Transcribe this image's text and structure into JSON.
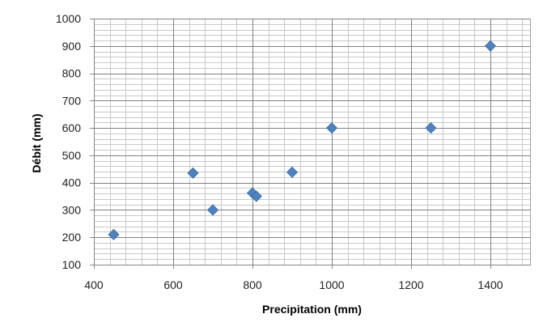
{
  "chart_data": {
    "type": "scatter",
    "title": "",
    "xlabel": "Precipitation (mm)",
    "ylabel": "Débit (mm)",
    "xlim": [
      400,
      1500
    ],
    "ylim": [
      100,
      1000
    ],
    "x_major_step": 200,
    "y_major_step": 100,
    "x_ticks": [
      "400",
      "600",
      "800",
      "1000",
      "1200",
      "1400"
    ],
    "y_ticks": [
      "100",
      "200",
      "300",
      "400",
      "500",
      "600",
      "700",
      "800",
      "900",
      "1000"
    ],
    "grid": true,
    "marker": "diamond",
    "marker_color": "#4f81bd",
    "series": [
      {
        "points": [
          {
            "x": 450,
            "y": 210
          },
          {
            "x": 650,
            "y": 435
          },
          {
            "x": 700,
            "y": 300
          },
          {
            "x": 800,
            "y": 362
          },
          {
            "x": 810,
            "y": 350
          },
          {
            "x": 900,
            "y": 438
          },
          {
            "x": 1000,
            "y": 600
          },
          {
            "x": 1250,
            "y": 600
          },
          {
            "x": 1400,
            "y": 900
          }
        ]
      }
    ]
  }
}
